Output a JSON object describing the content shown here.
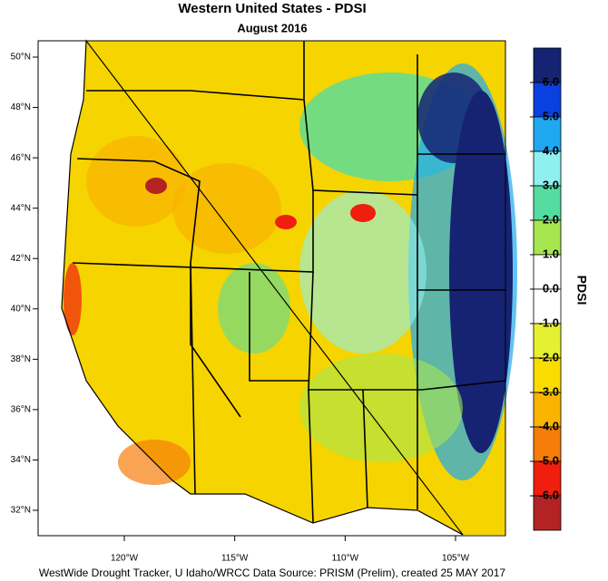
{
  "title": "Western United States - PDSI",
  "subtitle": "August 2016",
  "footer": "WestWide Drought Tracker, U Idaho/WRCC Data Source: PRISM (Prelim), created 25 MAY 2017",
  "map": {
    "lat_ticks": [
      {
        "value": 50,
        "label": "50°N"
      },
      {
        "value": 48,
        "label": "48°N"
      },
      {
        "value": 46,
        "label": "46°N"
      },
      {
        "value": 44,
        "label": "44°N"
      },
      {
        "value": 42,
        "label": "42°N"
      },
      {
        "value": 40,
        "label": "40°N"
      },
      {
        "value": 38,
        "label": "38°N"
      },
      {
        "value": 36,
        "label": "36°N"
      },
      {
        "value": 34,
        "label": "34°N"
      },
      {
        "value": 32,
        "label": "32°N"
      }
    ],
    "lon_ticks": [
      {
        "value": -120,
        "label": "120°W"
      },
      {
        "value": -115,
        "label": "115°W"
      },
      {
        "value": -110,
        "label": "110°W"
      },
      {
        "value": -105,
        "label": "105°W"
      }
    ]
  },
  "colorbar": {
    "title": "PDSI",
    "ticks": [
      {
        "value": 6,
        "label": "6.0"
      },
      {
        "value": 5,
        "label": "5.0"
      },
      {
        "value": 4,
        "label": "4.0"
      },
      {
        "value": 3,
        "label": "3.0"
      },
      {
        "value": 2,
        "label": "2.0"
      },
      {
        "value": 1,
        "label": "1.0"
      },
      {
        "value": 0,
        "label": "0.0"
      },
      {
        "value": -1,
        "label": "-1.0"
      },
      {
        "value": -2,
        "label": "-2.0"
      },
      {
        "value": -3,
        "label": "-3.0"
      },
      {
        "value": -4,
        "label": "-4.0"
      },
      {
        "value": -5,
        "label": "-5.0"
      },
      {
        "value": -6,
        "label": "-6.0"
      }
    ],
    "colors": [
      "#152372",
      "#0a40e0",
      "#1fa8f0",
      "#90f0f0",
      "#55dca0",
      "#a6e650",
      "#ffffff",
      "#ffffff",
      "#e6f032",
      "#fadc00",
      "#fab400",
      "#f57d0a",
      "#f01e0f",
      "#b42323"
    ]
  }
}
